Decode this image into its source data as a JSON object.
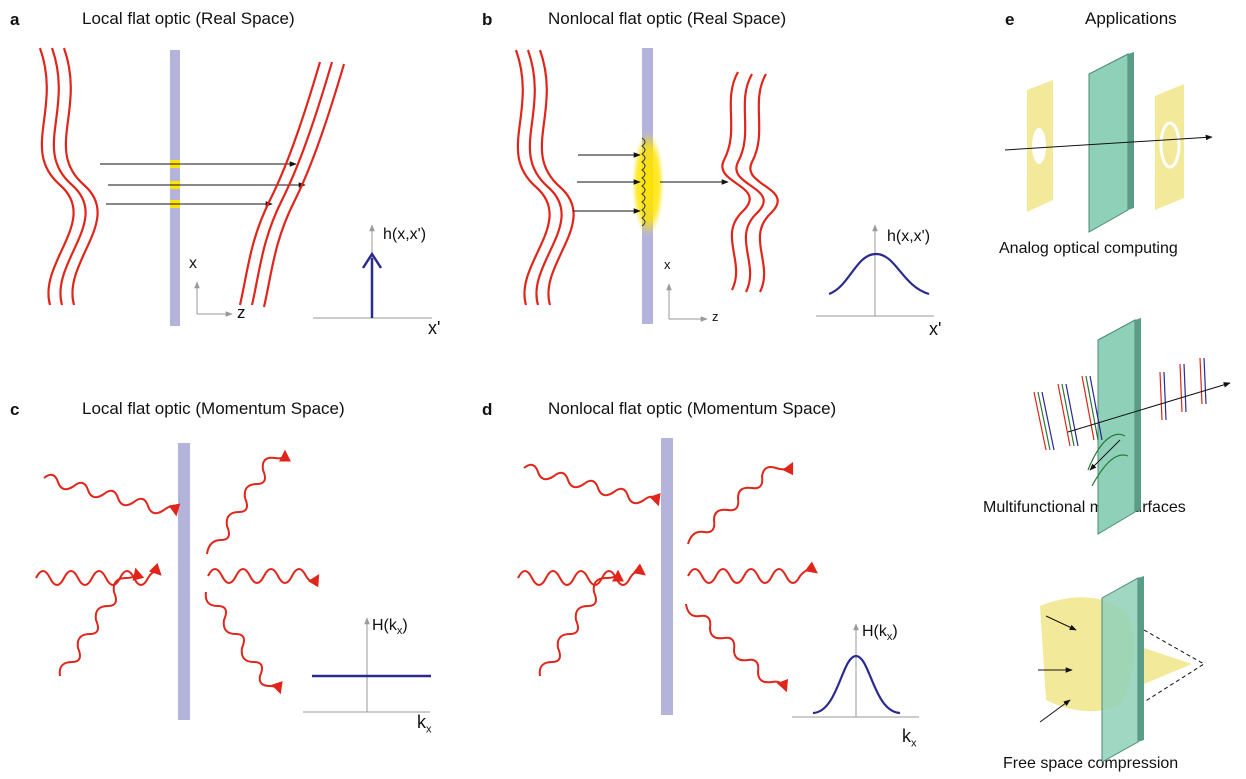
{
  "panels": {
    "a": {
      "letter": "a",
      "title": "Local flat optic (Real Space)",
      "func_label": "h(x,x')",
      "x_axis": "x",
      "z_axis": "z",
      "xprime": "x'"
    },
    "b": {
      "letter": "b",
      "title": "Nonlocal flat optic (Real Space)",
      "func_label": "h(x,x')",
      "x_axis": "x",
      "z_axis": "z",
      "xprime": "x'"
    },
    "c": {
      "letter": "c",
      "title": "Local flat optic (Momentum Space)",
      "func_label": "H(k",
      "func_sub": "x",
      "func_close": ")",
      "k_main": "k",
      "k_sub": "x"
    },
    "d": {
      "letter": "d",
      "title": "Nonlocal flat optic (Momentum Space)",
      "func_label": "H(k",
      "func_sub": "x",
      "func_close": ")",
      "k_main": "k",
      "k_sub": "x"
    },
    "e": {
      "letter": "e",
      "title": "Applications",
      "items": [
        {
          "caption": "Analog optical computing"
        },
        {
          "caption": "Multifunctional metasurfaces"
        },
        {
          "caption": "Free space compression"
        }
      ]
    }
  },
  "colors": {
    "wave": "#e0261b",
    "slab": "#b3b3dc",
    "plate": "#8fd0b8",
    "mask": "#f3e99a",
    "curve": "#2a2a8f",
    "highlight": "#ffe400",
    "axis": "#9a9a9a"
  }
}
